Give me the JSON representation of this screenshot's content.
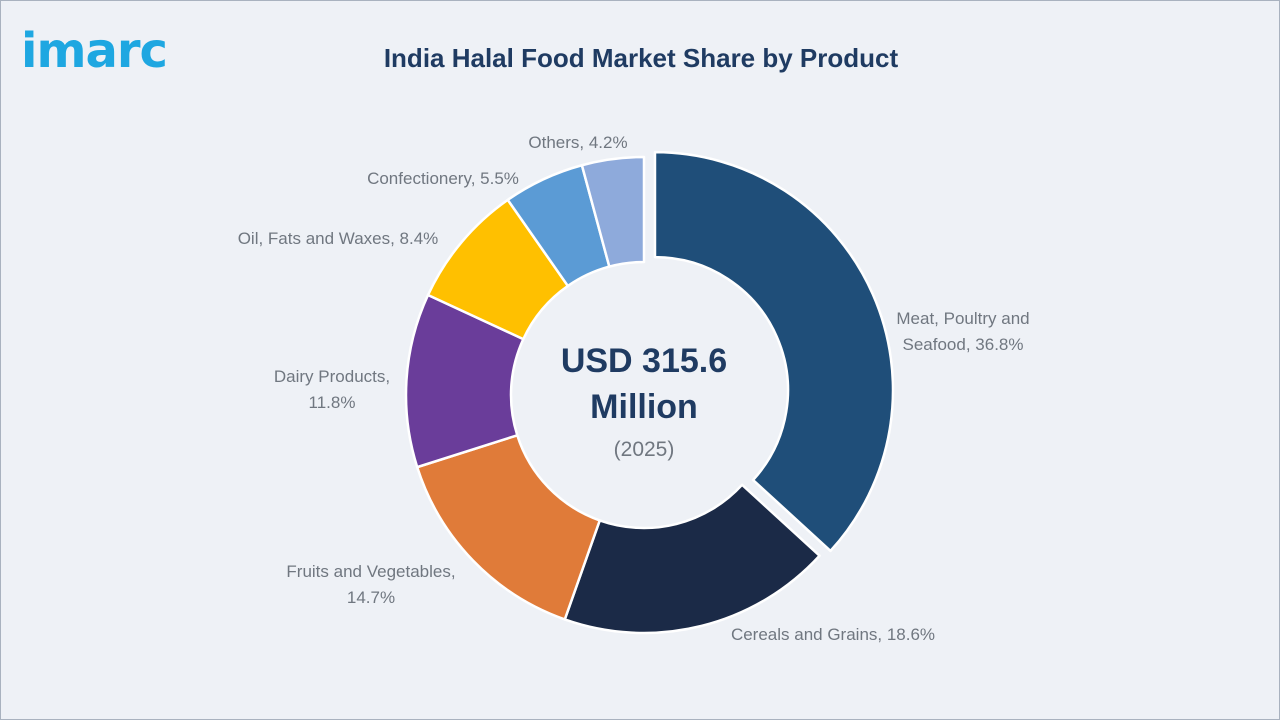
{
  "logo": {
    "text": "imarc",
    "color": "#1ea7e1"
  },
  "chart_data": {
    "type": "pie",
    "variant": "donut",
    "title": "India Halal Food Market Share by Product",
    "center": {
      "value_lines": [
        "USD 315.6",
        "Million"
      ],
      "year": "(2025)"
    },
    "unit": "%",
    "slices": [
      {
        "label_lines": [
          "Meat, Poultry and",
          "Seafood, 36.8%"
        ],
        "category": "Meat, Poultry and Seafood",
        "value": 36.8,
        "color": "#1f4e79",
        "exploded": true
      },
      {
        "label_lines": [
          "Cereals and Grains, 18.6%"
        ],
        "category": "Cereals and Grains",
        "value": 18.6,
        "color": "#1b2a47"
      },
      {
        "label_lines": [
          "Fruits and Vegetables,",
          "14.7%"
        ],
        "category": "Fruits and Vegetables",
        "value": 14.7,
        "color": "#e07b39"
      },
      {
        "label_lines": [
          "Dairy Products,",
          "11.8%"
        ],
        "category": "Dairy Products",
        "value": 11.8,
        "color": "#6a3d9a"
      },
      {
        "label_lines": [
          "Oil, Fats and Waxes, 8.4%"
        ],
        "category": "Oil, Fats and Waxes",
        "value": 8.4,
        "color": "#ffc000"
      },
      {
        "label_lines": [
          "Confectionery, 5.5%"
        ],
        "category": "Confectionery",
        "value": 5.5,
        "color": "#5b9bd5"
      },
      {
        "label_lines": [
          "Others, 4.2%"
        ],
        "category": "Others",
        "value": 4.2,
        "color": "#8eaadb"
      }
    ]
  }
}
